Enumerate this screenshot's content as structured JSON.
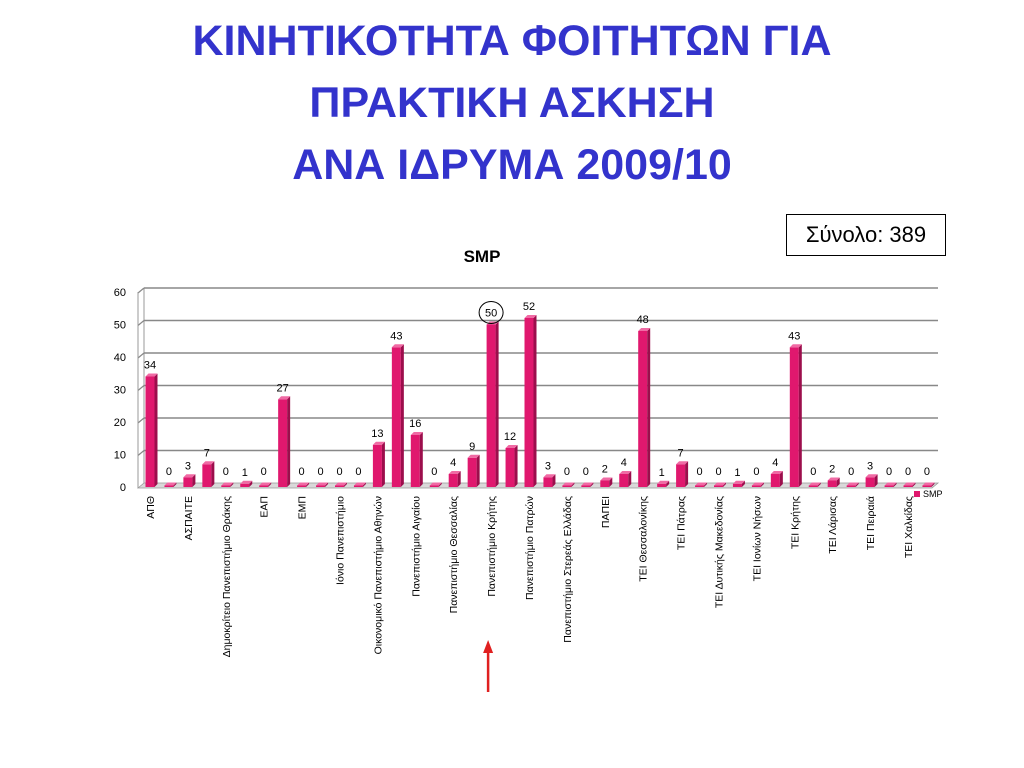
{
  "slide": {
    "title_lines": [
      "ΚΙΝΗΤΙΚΟΤΗΤΑ ΦΟΙΤΗΤΩΝ ΓΙΑ",
      "ΠΡΑΚΤΙΚΗ ΑΣΚΗΣΗ",
      "ΑΝΑ ΙΔΡΥΜΑ 2009/10"
    ],
    "total_label": "Σύνολο: 389"
  },
  "colors": {
    "title": "#3333cc",
    "bar": "#e0186e",
    "arrow": "#e02020",
    "grid": "#888888"
  },
  "chart_data": {
    "type": "bar",
    "title": "SMP",
    "xlabel": "",
    "ylabel": "",
    "ylim": [
      0,
      60
    ],
    "yticks": [
      0,
      10,
      20,
      30,
      40,
      50,
      60
    ],
    "grid": true,
    "legend_position": "right",
    "highlighted_category": "Πανεπιστήμιο Κρήτης",
    "highlight_marker": "circle-and-arrow",
    "categories": [
      "ΑΠΘ",
      "",
      "ΑΣΠΑΙΤΕ",
      "",
      "Δημοκρίτειο Πανεπιστήμιο Θράκης",
      "",
      "ΕΑΠ",
      "",
      "ΕΜΠ",
      "",
      "Ιόνιο Πανεπιστήμιο",
      "",
      "Οικονομικό Πανεπιστήμιο Αθηνών",
      "",
      "Πανεπιστήμιο Αιγαίου",
      "",
      "Πανεπιστήμιο Θεσσαλίας",
      "",
      "Πανεπιστήμιο Κρήτης",
      "",
      "Πανεπιστήμιο Πατρών",
      "",
      "Πανεπιστήμιο Στερεάς Ελλάδας",
      "",
      "ΠΑΠΕΙ",
      "",
      "ΤΕΙ Θεσσαλονίκης",
      "",
      "ΤΕΙ Πάτρας",
      "",
      "ΤΕΙ Δυτικής Μακεδονίας",
      "",
      "ΤΕΙ Ιονίων Νήσων",
      "",
      "ΤΕΙ Κρήτης",
      "",
      "ΤΕΙ Λάρισας",
      "",
      "ΤΕΙ Πειραιά",
      "",
      "ΤΕΙ Χαλκίδας",
      ""
    ],
    "series": [
      {
        "name": "SMP",
        "values": [
          34,
          0,
          3,
          7,
          0,
          1,
          0,
          27,
          0,
          0,
          0,
          0,
          13,
          43,
          16,
          0,
          4,
          9,
          50,
          12,
          52,
          3,
          0,
          0,
          2,
          4,
          48,
          1,
          7,
          0,
          0,
          1,
          0,
          4,
          43,
          0,
          2,
          0,
          3,
          0,
          0,
          0
        ]
      }
    ]
  }
}
